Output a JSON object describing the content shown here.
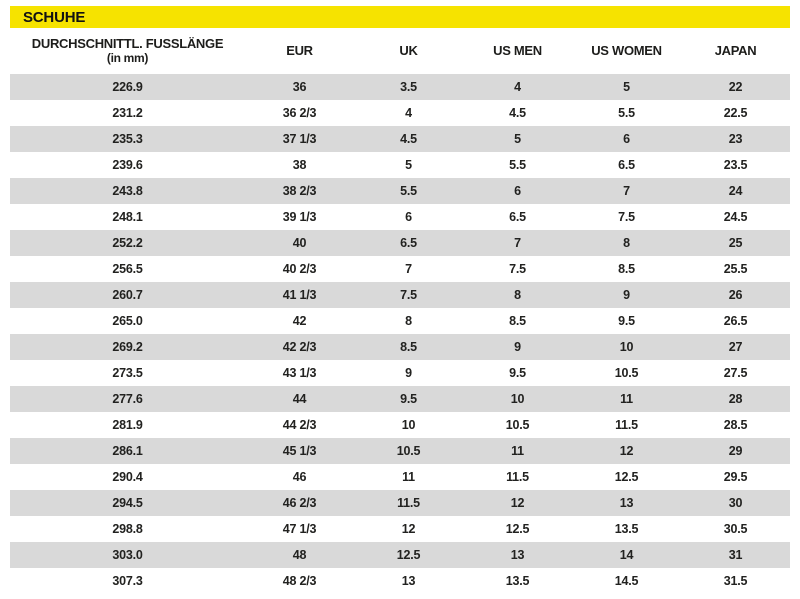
{
  "page": {
    "title": "SCHUHE"
  },
  "colors": {
    "accent_yellow": "#f6e300",
    "row_gray": "#d9d9d9",
    "text": "#1d1d1b",
    "background": "#ffffff"
  },
  "table": {
    "columns": [
      {
        "label": "DURCHSCHNITTL. FUSSLÄNGE",
        "sublabel": "(in mm)"
      },
      {
        "label": "EUR"
      },
      {
        "label": "UK"
      },
      {
        "label": "US MEN"
      },
      {
        "label": "US WOMEN"
      },
      {
        "label": "JAPAN"
      }
    ],
    "rows": [
      [
        "226.9",
        "36",
        "3.5",
        "4",
        "5",
        "22"
      ],
      [
        "231.2",
        "36 2/3",
        "4",
        "4.5",
        "5.5",
        "22.5"
      ],
      [
        "235.3",
        "37 1/3",
        "4.5",
        "5",
        "6",
        "23"
      ],
      [
        "239.6",
        "38",
        "5",
        "5.5",
        "6.5",
        "23.5"
      ],
      [
        "243.8",
        "38 2/3",
        "5.5",
        "6",
        "7",
        "24"
      ],
      [
        "248.1",
        "39 1/3",
        "6",
        "6.5",
        "7.5",
        "24.5"
      ],
      [
        "252.2",
        "40",
        "6.5",
        "7",
        "8",
        "25"
      ],
      [
        "256.5",
        "40 2/3",
        "7",
        "7.5",
        "8.5",
        "25.5"
      ],
      [
        "260.7",
        "41 1/3",
        "7.5",
        "8",
        "9",
        "26"
      ],
      [
        "265.0",
        "42",
        "8",
        "8.5",
        "9.5",
        "26.5"
      ],
      [
        "269.2",
        "42 2/3",
        "8.5",
        "9",
        "10",
        "27"
      ],
      [
        "273.5",
        "43 1/3",
        "9",
        "9.5",
        "10.5",
        "27.5"
      ],
      [
        "277.6",
        "44",
        "9.5",
        "10",
        "11",
        "28"
      ],
      [
        "281.9",
        "44 2/3",
        "10",
        "10.5",
        "11.5",
        "28.5"
      ],
      [
        "286.1",
        "45 1/3",
        "10.5",
        "11",
        "12",
        "29"
      ],
      [
        "290.4",
        "46",
        "11",
        "11.5",
        "12.5",
        "29.5"
      ],
      [
        "294.5",
        "46 2/3",
        "11.5",
        "12",
        "13",
        "30"
      ],
      [
        "298.8",
        "47 1/3",
        "12",
        "12.5",
        "13.5",
        "30.5"
      ],
      [
        "303.0",
        "48",
        "12.5",
        "13",
        "14",
        "31"
      ],
      [
        "307.3",
        "48 2/3",
        "13",
        "13.5",
        "14.5",
        "31.5"
      ]
    ]
  }
}
